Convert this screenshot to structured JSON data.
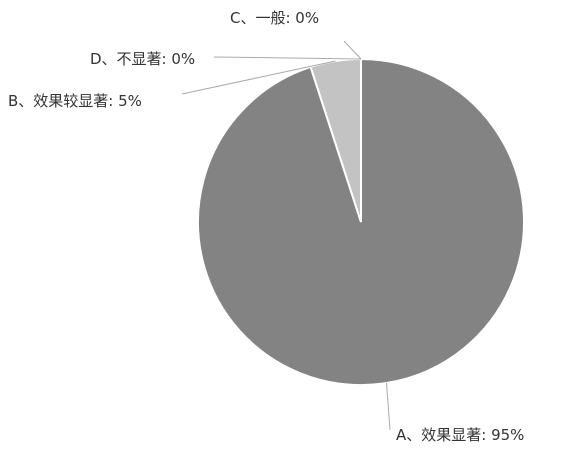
{
  "chart_data": {
    "type": "pie",
    "title": "",
    "slices": [
      {
        "label": "A、效果显著: 95%",
        "value": 95,
        "color": "#838383"
      },
      {
        "label": "B、效果较显著: 5%",
        "value": 5,
        "color": "#c3c3c3"
      },
      {
        "label": "C、一般: 0%",
        "value": 0,
        "color": "#d6d6d6"
      },
      {
        "label": "D、不显著: 0%",
        "value": 0,
        "color": "#e6e6e6"
      }
    ],
    "legend": "none",
    "colors": {
      "slice_border": "#ffffff",
      "leader_line": "#aaaaaa",
      "label_text": "#333333",
      "background": "#ffffff"
    }
  }
}
